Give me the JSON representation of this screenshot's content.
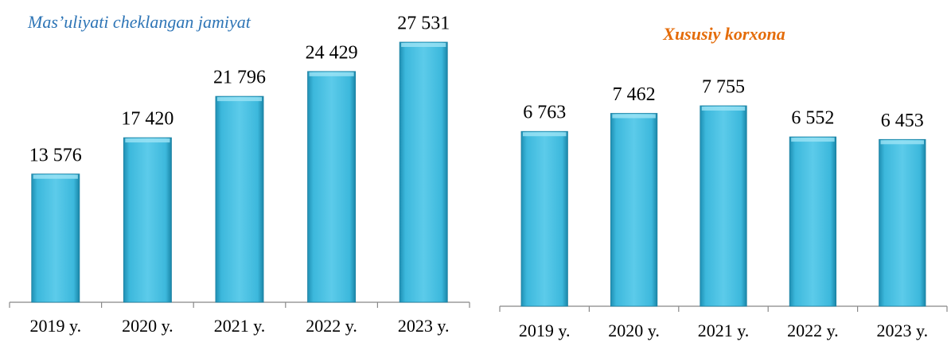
{
  "chart_data": [
    {
      "type": "bar",
      "title": "Mas’uliyati cheklangan jamiyat",
      "categories": [
        "2019 y.",
        "2020 y.",
        "2021 y.",
        "2022 y.",
        "2023 y."
      ],
      "values": [
        13576,
        17420,
        21796,
        24429,
        27531
      ],
      "value_labels": [
        "13 576",
        "17 420",
        "21 796",
        "24 429",
        "27 531"
      ],
      "color": "#3cb8dc",
      "title_color": "#2e75b6"
    },
    {
      "type": "bar",
      "title": "Xususiy korxona",
      "categories": [
        "2019 y.",
        "2020 y.",
        "2021 y.",
        "2022 y.",
        "2023 y."
      ],
      "values": [
        6763,
        7462,
        7755,
        6552,
        6453
      ],
      "value_labels": [
        "6 763",
        "7 462",
        "7 755",
        "6 552",
        "6 453"
      ],
      "color": "#3cb8dc",
      "title_color": "#e46c0a"
    }
  ]
}
